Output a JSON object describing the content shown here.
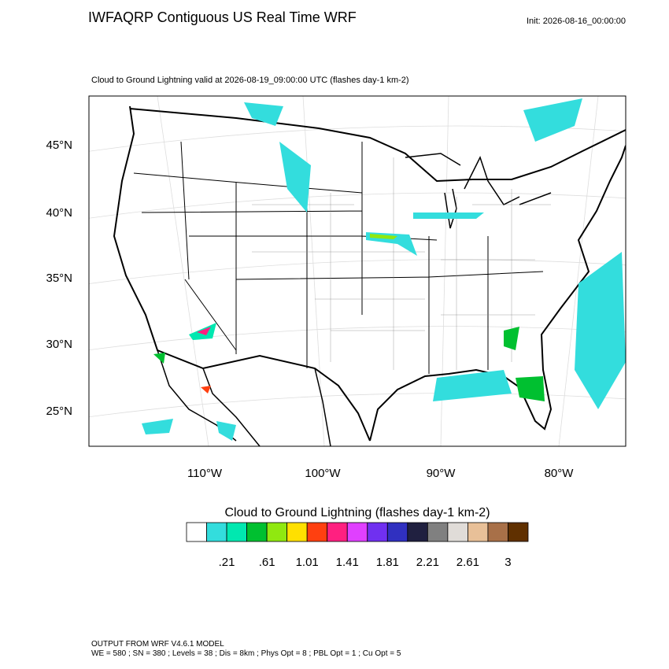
{
  "header": {
    "title": "IWFAQRP Contiguous US Real Time WRF",
    "init": "Init: 2026-08-16_00:00:00"
  },
  "map": {
    "subtitle": "Cloud to Ground Lightning valid at 2026-08-19_09:00:00 UTC   (flashes day-1 km-2)",
    "lat_labels": [
      "45°N",
      "40°N",
      "35°N",
      "30°N",
      "25°N"
    ],
    "lon_labels": [
      "110°W",
      "100°W",
      "90°W",
      "80°W"
    ]
  },
  "colorbar": {
    "title": "Cloud to Ground Lightning  (flashes day-1 km-2)",
    "colors": [
      "#ffffff",
      "#33dddd",
      "#00e8b0",
      "#00c030",
      "#90e810",
      "#ffe000",
      "#ff4010",
      "#ff2080",
      "#e040ff",
      "#7030f0",
      "#3030c0",
      "#202040",
      "#808080",
      "#e0dcd8",
      "#e8c098",
      "#a87048",
      "#603000"
    ],
    "labels": [
      ".21",
      ".61",
      "1.01",
      "1.41",
      "1.81",
      "2.21",
      "2.61",
      "3"
    ]
  },
  "footer": {
    "line1": "OUTPUT FROM WRF V4.6.1 MODEL",
    "line2": "WE = 580 ; SN = 380 ; Levels = 38 ; Dis = 8km ; Phys Opt = 8 ; PBL Opt = 1 ; Cu Opt = 5"
  }
}
